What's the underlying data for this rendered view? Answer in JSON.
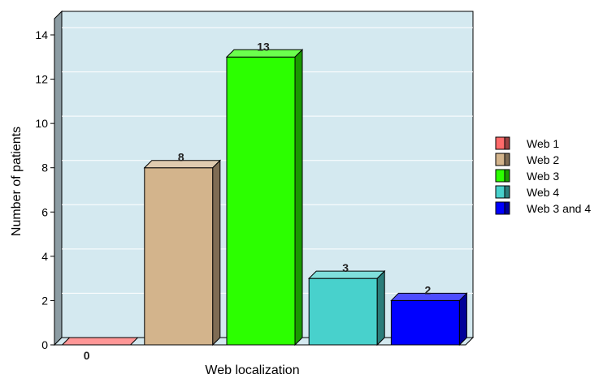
{
  "chart_data": {
    "type": "bar",
    "categories": [
      "Web 1",
      "Web 2",
      "Web 3",
      "Web 4",
      "Web 3 and 4"
    ],
    "values": [
      0,
      8,
      13,
      3,
      2
    ],
    "data_labels": [
      "0",
      "8",
      "13",
      "3",
      "2"
    ],
    "colors": [
      "#ff6a6a",
      "#d3b48c",
      "#2cff00",
      "#48d1cc",
      "#0000ff"
    ],
    "xlabel": "Web localization",
    "ylabel": "Number of patients",
    "ylim": [
      0,
      14
    ],
    "yticks": [
      "0",
      "2",
      "4",
      "6",
      "8",
      "10",
      "12",
      "14"
    ],
    "grid": true,
    "legend_position": "right",
    "plot_background": "#d4e9f0"
  }
}
